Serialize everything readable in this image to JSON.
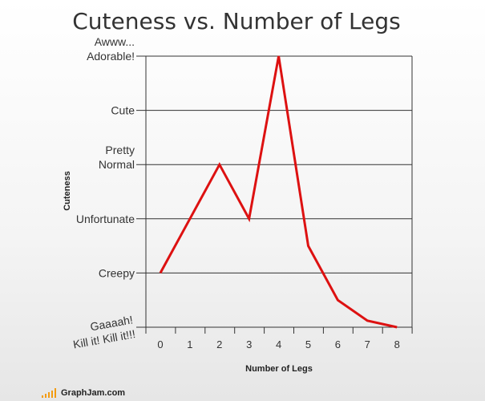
{
  "chart_data": {
    "type": "line",
    "title": "Cuteness vs. Number of Legs",
    "xlabel": "Number of Legs",
    "ylabel": "Cuteness",
    "categories": [
      "0",
      "1",
      "2",
      "3",
      "4",
      "5",
      "6",
      "7",
      "8"
    ],
    "y_levels": [
      [
        "Gaaaah!",
        "Kill it! Kill it!!!"
      ],
      [
        "Creepy"
      ],
      [
        "Unfortunate"
      ],
      [
        "Pretty",
        "Normal"
      ],
      [
        "Cute"
      ],
      [
        "Awww...",
        "Adorable!"
      ]
    ],
    "series": [
      {
        "values": [
          1,
          2,
          3,
          2,
          5,
          1.5,
          0.5,
          0.12,
          0
        ]
      }
    ],
    "ylim": [
      0,
      5
    ],
    "grid": true,
    "line_color": "#dd1111"
  },
  "footer": {
    "logo_text": "GraphJam.com"
  }
}
